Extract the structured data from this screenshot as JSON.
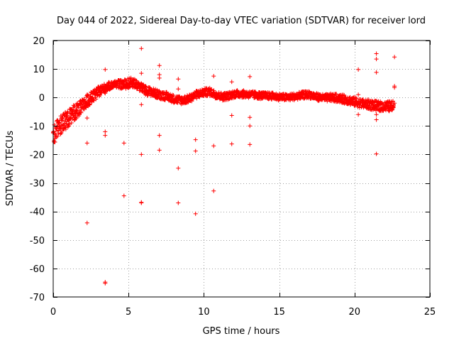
{
  "chart_data": {
    "type": "scatter",
    "title": "Day 044 of 2022, Sidereal Day-to-day VTEC variation (SDTVAR) for receiver lord",
    "xlabel": "GPS time / hours",
    "ylabel": "SDTVAR / TECUs",
    "xlim": [
      0,
      25
    ],
    "ylim": [
      -70,
      20
    ],
    "xticks": [
      0,
      5,
      10,
      15,
      20,
      25
    ],
    "yticks": [
      20,
      10,
      0,
      -10,
      -20,
      -30,
      -40,
      -50,
      -60,
      -70
    ],
    "grid": true,
    "marker": "+",
    "color": "#ff0000",
    "series": [
      {
        "name": "SDTVAR",
        "trend": [
          [
            0.0,
            -13.0
          ],
          [
            0.3,
            -11.0
          ],
          [
            0.6,
            -9.0
          ],
          [
            1.0,
            -7.5
          ],
          [
            1.3,
            -5.5
          ],
          [
            1.6,
            -4.5
          ],
          [
            2.0,
            -3.0
          ],
          [
            2.3,
            -1.0
          ],
          [
            2.7,
            0.5
          ],
          [
            3.0,
            2.0
          ],
          [
            3.4,
            3.3
          ],
          [
            3.8,
            4.2
          ],
          [
            4.2,
            4.8
          ],
          [
            4.6,
            4.5
          ],
          [
            5.0,
            5.0
          ],
          [
            5.3,
            5.3
          ],
          [
            5.7,
            4.0
          ],
          [
            6.1,
            2.5
          ],
          [
            6.5,
            2.0
          ],
          [
            7.0,
            1.0
          ],
          [
            7.5,
            0.5
          ],
          [
            8.0,
            -0.5
          ],
          [
            8.5,
            -1.0
          ],
          [
            9.0,
            -0.5
          ],
          [
            9.5,
            1.0
          ],
          [
            10.0,
            1.8
          ],
          [
            10.4,
            2.0
          ],
          [
            10.8,
            1.0
          ],
          [
            11.2,
            0.3
          ],
          [
            11.6,
            0.5
          ],
          [
            12.0,
            1.2
          ],
          [
            12.5,
            1.3
          ],
          [
            13.0,
            1.0
          ],
          [
            13.5,
            0.8
          ],
          [
            14.0,
            0.6
          ],
          [
            14.5,
            0.5
          ],
          [
            15.0,
            0.2
          ],
          [
            15.5,
            0.0
          ],
          [
            16.0,
            0.3
          ],
          [
            16.5,
            0.8
          ],
          [
            17.0,
            1.0
          ],
          [
            17.5,
            0.2
          ],
          [
            18.0,
            -0.2
          ],
          [
            18.5,
            0.0
          ],
          [
            19.0,
            -0.3
          ],
          [
            19.5,
            -0.8
          ],
          [
            20.0,
            -1.5
          ],
          [
            20.5,
            -2.2
          ],
          [
            21.0,
            -2.5
          ],
          [
            21.5,
            -3.0
          ],
          [
            22.0,
            -3.2
          ],
          [
            22.6,
            -3.0
          ]
        ],
        "spread": [
          [
            0.0,
            3.5
          ],
          [
            1.0,
            3.0
          ],
          [
            2.0,
            2.5
          ],
          [
            3.0,
            1.8
          ],
          [
            4.0,
            1.2
          ],
          [
            5.0,
            1.8
          ],
          [
            6.0,
            1.6
          ],
          [
            8.0,
            1.4
          ],
          [
            10.0,
            1.4
          ],
          [
            12.0,
            1.3
          ],
          [
            15.0,
            1.2
          ],
          [
            18.0,
            1.3
          ],
          [
            20.0,
            1.6
          ],
          [
            22.6,
            1.8
          ]
        ],
        "outliers": [
          [
            2.25,
            -7.2
          ],
          [
            2.25,
            -16.0
          ],
          [
            2.25,
            -44.0
          ],
          [
            3.45,
            9.8
          ],
          [
            3.45,
            1.5
          ],
          [
            3.45,
            -12.0
          ],
          [
            3.45,
            -13.3
          ],
          [
            3.45,
            -64.8
          ],
          [
            3.45,
            -65.2
          ],
          [
            4.7,
            -16.0
          ],
          [
            4.7,
            -34.5
          ],
          [
            5.85,
            17.2
          ],
          [
            5.85,
            8.5
          ],
          [
            5.85,
            -2.5
          ],
          [
            5.85,
            -20.0
          ],
          [
            5.85,
            -36.8
          ],
          [
            5.85,
            -37.0
          ],
          [
            7.05,
            11.2
          ],
          [
            7.05,
            8.0
          ],
          [
            7.05,
            6.8
          ],
          [
            7.05,
            -13.3
          ],
          [
            7.05,
            -18.5
          ],
          [
            8.3,
            6.5
          ],
          [
            8.3,
            3.0
          ],
          [
            8.3,
            -24.8
          ],
          [
            8.3,
            -37.0
          ],
          [
            9.45,
            -14.8
          ],
          [
            9.45,
            -18.8
          ],
          [
            9.45,
            -40.8
          ],
          [
            10.65,
            7.5
          ],
          [
            10.65,
            -17.0
          ],
          [
            10.65,
            -32.8
          ],
          [
            11.85,
            5.5
          ],
          [
            11.85,
            -6.3
          ],
          [
            11.85,
            -16.3
          ],
          [
            13.05,
            7.3
          ],
          [
            13.05,
            -7.0
          ],
          [
            13.05,
            -10.0
          ],
          [
            13.05,
            -16.5
          ],
          [
            20.25,
            9.8
          ],
          [
            20.25,
            1.0
          ],
          [
            20.25,
            -6.0
          ],
          [
            21.45,
            15.4
          ],
          [
            21.45,
            13.5
          ],
          [
            21.45,
            8.8
          ],
          [
            21.45,
            -6.0
          ],
          [
            21.45,
            -7.8
          ],
          [
            21.45,
            -19.8
          ],
          [
            22.65,
            14.2
          ],
          [
            22.65,
            4.0
          ],
          [
            22.65,
            3.5
          ],
          [
            22.65,
            -2.0
          ]
        ]
      }
    ]
  }
}
